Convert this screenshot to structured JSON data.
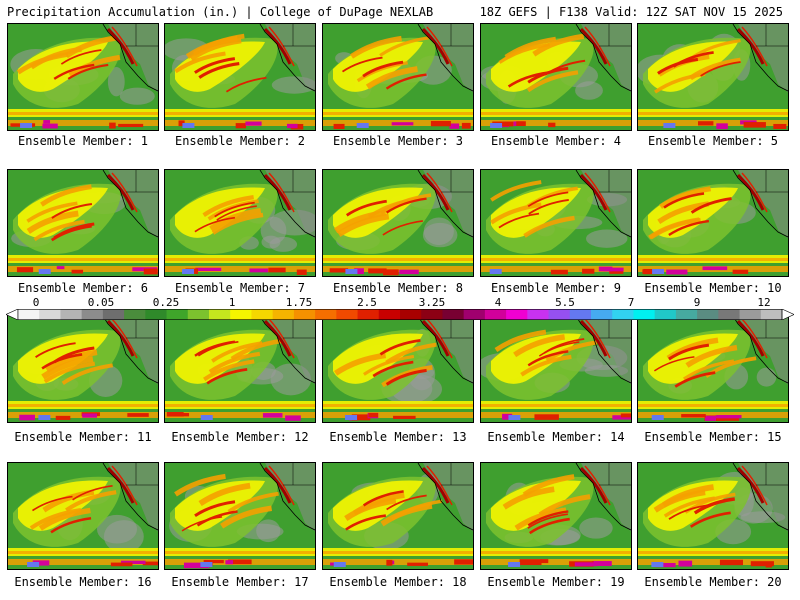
{
  "header": {
    "left_title": "Precipitation Accumulation (in.) | College of DuPage NEXLAB",
    "right_title": "18Z GEFS | F138 Valid: 12Z SAT NOV 15 2025"
  },
  "panels": [
    {
      "caption": "Ensemble Member: 1"
    },
    {
      "caption": "Ensemble Member: 2"
    },
    {
      "caption": "Ensemble Member: 3"
    },
    {
      "caption": "Ensemble Member: 4"
    },
    {
      "caption": "Ensemble Member: 5"
    },
    {
      "caption": "Ensemble Member: 6"
    },
    {
      "caption": "Ensemble Member: 7"
    },
    {
      "caption": "Ensemble Member: 8"
    },
    {
      "caption": "Ensemble Member: 9"
    },
    {
      "caption": "Ensemble Member: 10"
    },
    {
      "caption": "Ensemble Member: 11"
    },
    {
      "caption": "Ensemble Member: 12"
    },
    {
      "caption": "Ensemble Member: 13"
    },
    {
      "caption": "Ensemble Member: 14"
    },
    {
      "caption": "Ensemble Member: 15"
    },
    {
      "caption": "Ensemble Member: 16"
    },
    {
      "caption": "Ensemble Member: 17"
    },
    {
      "caption": "Ensemble Member: 18"
    },
    {
      "caption": "Ensemble Member: 19"
    },
    {
      "caption": "Ensemble Member: 20"
    }
  ],
  "colorbar": {
    "tick_labels": [
      "0",
      "0.05",
      "0.25",
      "1",
      "1.75",
      "2.5",
      "3.25",
      "4",
      "5.5",
      "7",
      "9",
      "12"
    ],
    "colors": [
      "#f4f4f4",
      "#d8d8d8",
      "#b4b4b4",
      "#8c8c8c",
      "#6e6e6e",
      "#4a8c3c",
      "#2f8a2a",
      "#3fa52a",
      "#7cc22e",
      "#c4e61e",
      "#f5f500",
      "#f5d700",
      "#f5b400",
      "#f59100",
      "#f56e00",
      "#f04a00",
      "#e02000",
      "#c80000",
      "#a80000",
      "#8c0014",
      "#780032",
      "#a0006e",
      "#d2009b",
      "#f000d2",
      "#c832f0",
      "#9650f0",
      "#6478f0",
      "#46aaf0",
      "#32d2f0",
      "#00f0f0",
      "#20c8c8",
      "#46aaa0",
      "#5a8c82",
      "#787878",
      "#9b9b9b",
      "#bebebe"
    ]
  },
  "map_colors": {
    "base": "#3f9f2f",
    "light_green": "#7cc22e",
    "yellow": "#f5f500",
    "orange": "#f5a000",
    "red": "#e02000",
    "dark_red": "#a00000",
    "magenta": "#d2009b",
    "blue": "#6478f0",
    "gray": "#9b9b9b",
    "land": "#8a8a8a",
    "border": "#000000"
  }
}
